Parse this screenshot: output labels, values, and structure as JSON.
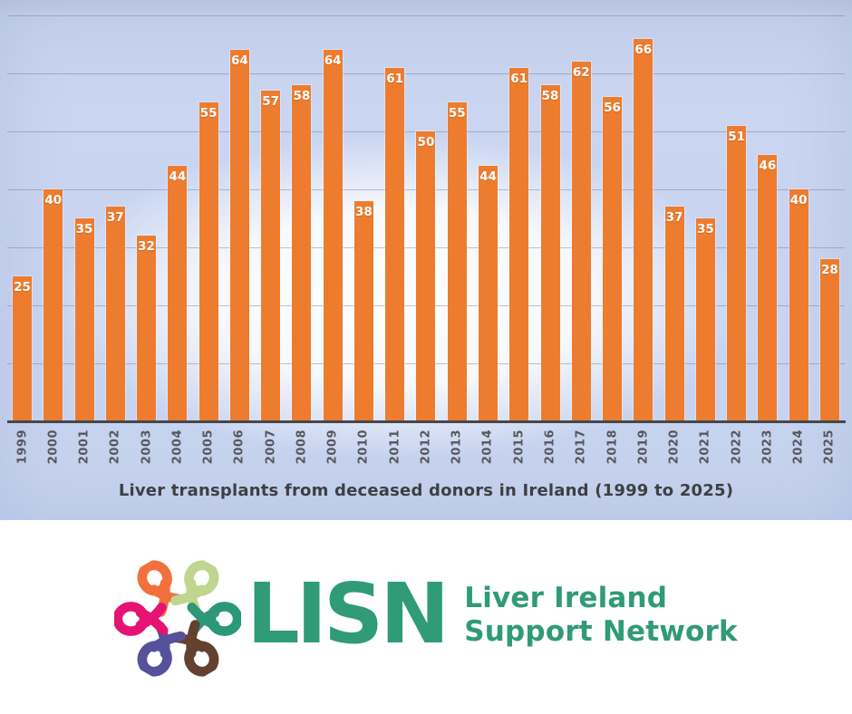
{
  "chart_data": {
    "type": "bar",
    "title": "Liver transplants from deceased donors in Ireland (1999 to 2025)",
    "categories": [
      "1999",
      "2000",
      "2001",
      "2002",
      "2003",
      "2004",
      "2005",
      "2006",
      "2007",
      "2008",
      "2009",
      "2010",
      "2011",
      "2012",
      "2013",
      "2014",
      "2015",
      "2016",
      "2017",
      "2018",
      "2019",
      "2020",
      "2021",
      "2022",
      "2023",
      "2024",
      "2025"
    ],
    "values": [
      25,
      40,
      35,
      37,
      32,
      44,
      55,
      64,
      57,
      58,
      64,
      38,
      61,
      50,
      55,
      44,
      61,
      58,
      62,
      56,
      66,
      37,
      35,
      51,
      46,
      40,
      28
    ],
    "xlabel": "",
    "ylabel": "",
    "ylim": [
      0,
      72
    ],
    "gridlines": [
      10,
      20,
      30,
      40,
      50,
      60,
      70
    ],
    "grid": "horizontal",
    "legend": "none",
    "bar_color": "#ED7C2F",
    "value_label_color": "#FFFFFF",
    "background_color": "#C8D5F0",
    "axis_color": "#45474B"
  },
  "logo": {
    "acronym": "LISN",
    "name_line1": "Liver Ireland",
    "name_line2": "Support Network",
    "brand_color": "#2F9B77",
    "ribbons": [
      {
        "name": "ribbon-orange",
        "color": "#F2703B"
      },
      {
        "name": "ribbon-light-green",
        "color": "#C0D58F"
      },
      {
        "name": "ribbon-teal",
        "color": "#2B9878"
      },
      {
        "name": "ribbon-brown",
        "color": "#64402F"
      },
      {
        "name": "ribbon-purple",
        "color": "#56519D"
      },
      {
        "name": "ribbon-pink",
        "color": "#E51373"
      }
    ]
  }
}
